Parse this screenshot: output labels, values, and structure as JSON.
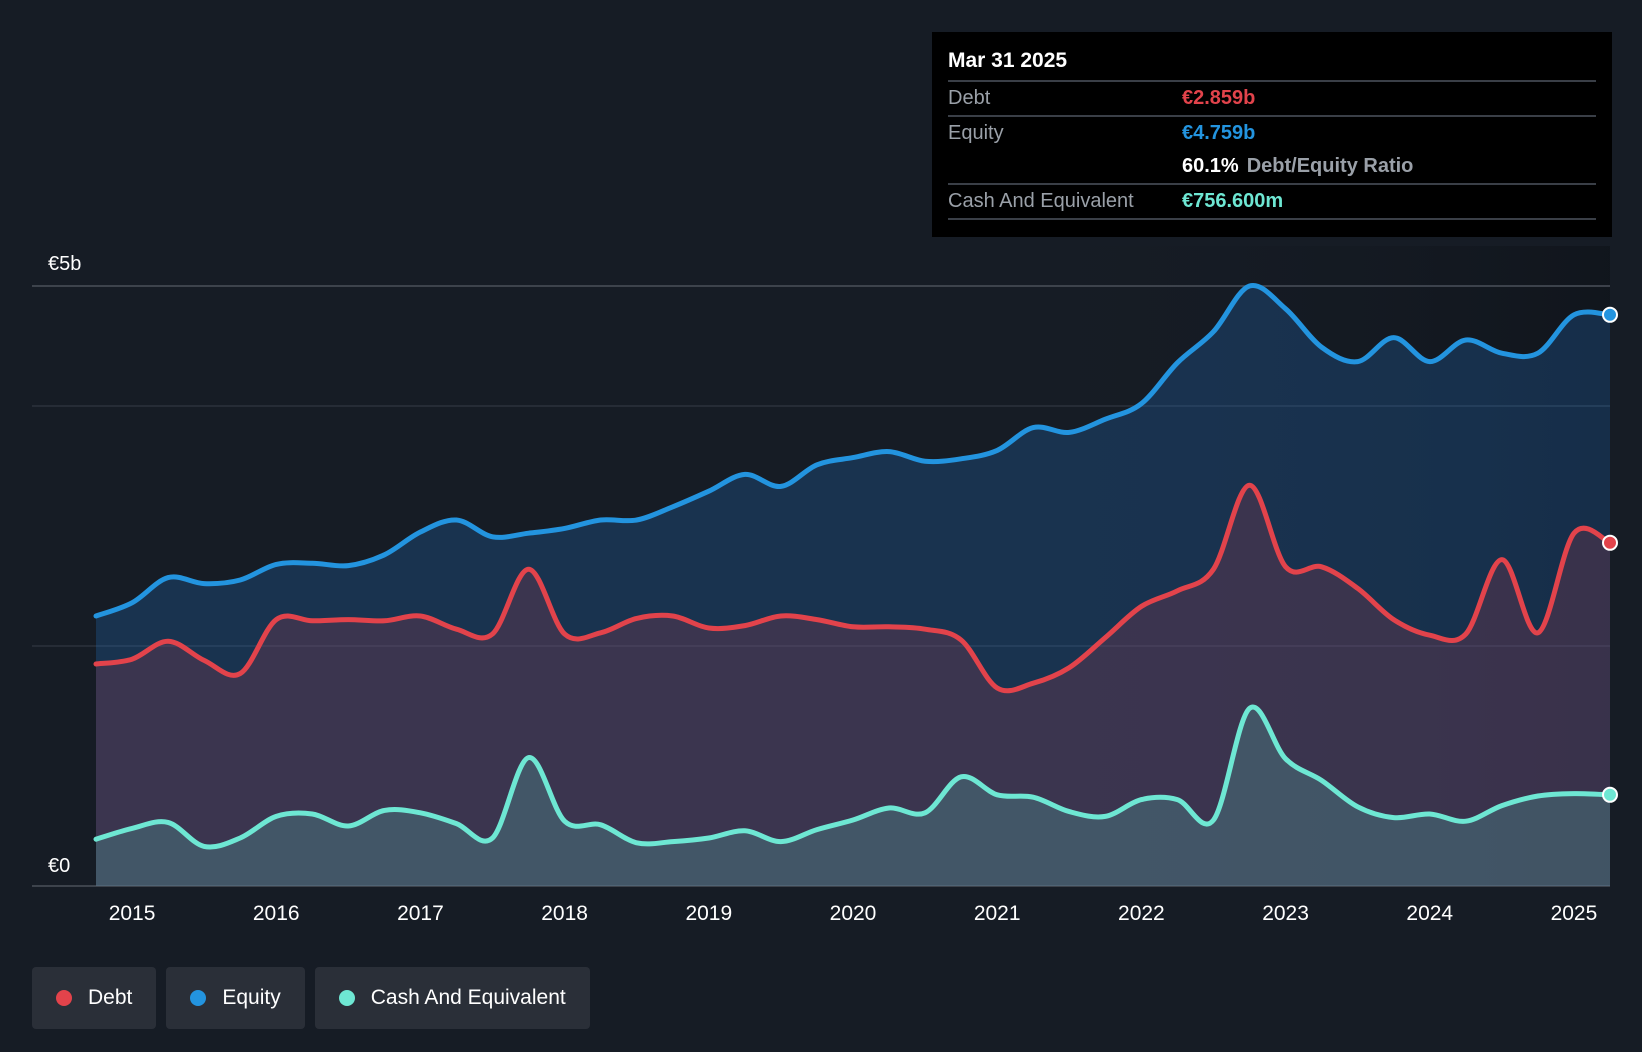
{
  "tooltip": {
    "date": "Mar 31 2025",
    "debt_label": "Debt",
    "debt_value": "€2.859b",
    "equity_label": "Equity",
    "equity_value": "€4.759b",
    "ratio_value": "60.1%",
    "ratio_label": "Debt/Equity Ratio",
    "cash_label": "Cash And Equivalent",
    "cash_value": "€756.600m"
  },
  "legend": [
    {
      "label": "Debt",
      "color": "#e2434b"
    },
    {
      "label": "Equity",
      "color": "#2394df"
    },
    {
      "label": "Cash And Equivalent",
      "color": "#6ee7d3"
    }
  ],
  "chart_data": {
    "type": "area",
    "title": "",
    "xlabel": "",
    "ylabel": "",
    "ylim": [
      0,
      5
    ],
    "y_unit": "€b",
    "y_tick_labels": [
      {
        "value": 5,
        "label": "€5b"
      },
      {
        "value": 0,
        "label": "€0"
      }
    ],
    "gridlines": [
      5,
      4,
      2
    ],
    "x_ticks": [
      2015,
      2016,
      2017,
      2018,
      2019,
      2020,
      2021,
      2022,
      2023,
      2024,
      2025
    ],
    "x_range": [
      2014.4,
      2025.25
    ],
    "series": [
      {
        "name": "Equity",
        "color": "#2394df",
        "points": [
          [
            2014.75,
            2.25
          ],
          [
            2015.0,
            2.36
          ],
          [
            2015.25,
            2.57
          ],
          [
            2015.5,
            2.52
          ],
          [
            2015.75,
            2.55
          ],
          [
            2016.0,
            2.68
          ],
          [
            2016.25,
            2.69
          ],
          [
            2016.5,
            2.67
          ],
          [
            2016.75,
            2.76
          ],
          [
            2017.0,
            2.95
          ],
          [
            2017.25,
            3.05
          ],
          [
            2017.5,
            2.91
          ],
          [
            2017.75,
            2.94
          ],
          [
            2018.0,
            2.98
          ],
          [
            2018.25,
            3.05
          ],
          [
            2018.5,
            3.05
          ],
          [
            2018.75,
            3.16
          ],
          [
            2019.0,
            3.29
          ],
          [
            2019.25,
            3.43
          ],
          [
            2019.5,
            3.33
          ],
          [
            2019.75,
            3.51
          ],
          [
            2020.0,
            3.57
          ],
          [
            2020.25,
            3.62
          ],
          [
            2020.5,
            3.54
          ],
          [
            2020.75,
            3.56
          ],
          [
            2021.0,
            3.63
          ],
          [
            2021.25,
            3.82
          ],
          [
            2021.5,
            3.78
          ],
          [
            2021.75,
            3.89
          ],
          [
            2022.0,
            4.02
          ],
          [
            2022.25,
            4.36
          ],
          [
            2022.5,
            4.62
          ],
          [
            2022.75,
            5.0
          ],
          [
            2023.0,
            4.81
          ],
          [
            2023.25,
            4.49
          ],
          [
            2023.5,
            4.37
          ],
          [
            2023.75,
            4.57
          ],
          [
            2024.0,
            4.37
          ],
          [
            2024.25,
            4.55
          ],
          [
            2024.5,
            4.44
          ],
          [
            2024.75,
            4.44
          ],
          [
            2025.0,
            4.76
          ],
          [
            2025.25,
            4.76
          ]
        ]
      },
      {
        "name": "Debt",
        "color": "#e2434b",
        "points": [
          [
            2014.75,
            1.85
          ],
          [
            2015.0,
            1.89
          ],
          [
            2015.25,
            2.04
          ],
          [
            2015.5,
            1.88
          ],
          [
            2015.75,
            1.77
          ],
          [
            2016.0,
            2.22
          ],
          [
            2016.25,
            2.21
          ],
          [
            2016.5,
            2.22
          ],
          [
            2016.75,
            2.21
          ],
          [
            2017.0,
            2.25
          ],
          [
            2017.25,
            2.14
          ],
          [
            2017.5,
            2.1
          ],
          [
            2017.75,
            2.64
          ],
          [
            2018.0,
            2.1
          ],
          [
            2018.25,
            2.11
          ],
          [
            2018.5,
            2.23
          ],
          [
            2018.75,
            2.25
          ],
          [
            2019.0,
            2.15
          ],
          [
            2019.25,
            2.17
          ],
          [
            2019.5,
            2.25
          ],
          [
            2019.75,
            2.22
          ],
          [
            2020.0,
            2.16
          ],
          [
            2020.25,
            2.16
          ],
          [
            2020.5,
            2.14
          ],
          [
            2020.75,
            2.05
          ],
          [
            2021.0,
            1.65
          ],
          [
            2021.25,
            1.69
          ],
          [
            2021.5,
            1.82
          ],
          [
            2021.75,
            2.07
          ],
          [
            2022.0,
            2.33
          ],
          [
            2022.25,
            2.46
          ],
          [
            2022.5,
            2.64
          ],
          [
            2022.75,
            3.34
          ],
          [
            2023.0,
            2.66
          ],
          [
            2023.25,
            2.66
          ],
          [
            2023.5,
            2.48
          ],
          [
            2023.75,
            2.22
          ],
          [
            2024.0,
            2.09
          ],
          [
            2024.25,
            2.1
          ],
          [
            2024.5,
            2.72
          ],
          [
            2024.75,
            2.11
          ],
          [
            2025.0,
            2.94
          ],
          [
            2025.25,
            2.86
          ]
        ]
      },
      {
        "name": "Cash And Equivalent",
        "color": "#6ee7d3",
        "points": [
          [
            2014.75,
            0.39
          ],
          [
            2015.0,
            0.48
          ],
          [
            2015.25,
            0.53
          ],
          [
            2015.5,
            0.33
          ],
          [
            2015.75,
            0.4
          ],
          [
            2016.0,
            0.58
          ],
          [
            2016.25,
            0.6
          ],
          [
            2016.5,
            0.5
          ],
          [
            2016.75,
            0.63
          ],
          [
            2017.0,
            0.61
          ],
          [
            2017.25,
            0.52
          ],
          [
            2017.5,
            0.4
          ],
          [
            2017.75,
            1.07
          ],
          [
            2018.0,
            0.54
          ],
          [
            2018.25,
            0.51
          ],
          [
            2018.5,
            0.36
          ],
          [
            2018.75,
            0.37
          ],
          [
            2019.0,
            0.4
          ],
          [
            2019.25,
            0.46
          ],
          [
            2019.5,
            0.37
          ],
          [
            2019.75,
            0.47
          ],
          [
            2020.0,
            0.55
          ],
          [
            2020.25,
            0.65
          ],
          [
            2020.5,
            0.61
          ],
          [
            2020.75,
            0.91
          ],
          [
            2021.0,
            0.76
          ],
          [
            2021.25,
            0.74
          ],
          [
            2021.5,
            0.62
          ],
          [
            2021.75,
            0.58
          ],
          [
            2022.0,
            0.72
          ],
          [
            2022.25,
            0.72
          ],
          [
            2022.5,
            0.55
          ],
          [
            2022.75,
            1.48
          ],
          [
            2023.0,
            1.06
          ],
          [
            2023.25,
            0.88
          ],
          [
            2023.5,
            0.66
          ],
          [
            2023.75,
            0.57
          ],
          [
            2024.0,
            0.6
          ],
          [
            2024.25,
            0.54
          ],
          [
            2024.5,
            0.67
          ],
          [
            2024.75,
            0.75
          ],
          [
            2025.0,
            0.77
          ],
          [
            2025.25,
            0.76
          ]
        ]
      }
    ]
  }
}
